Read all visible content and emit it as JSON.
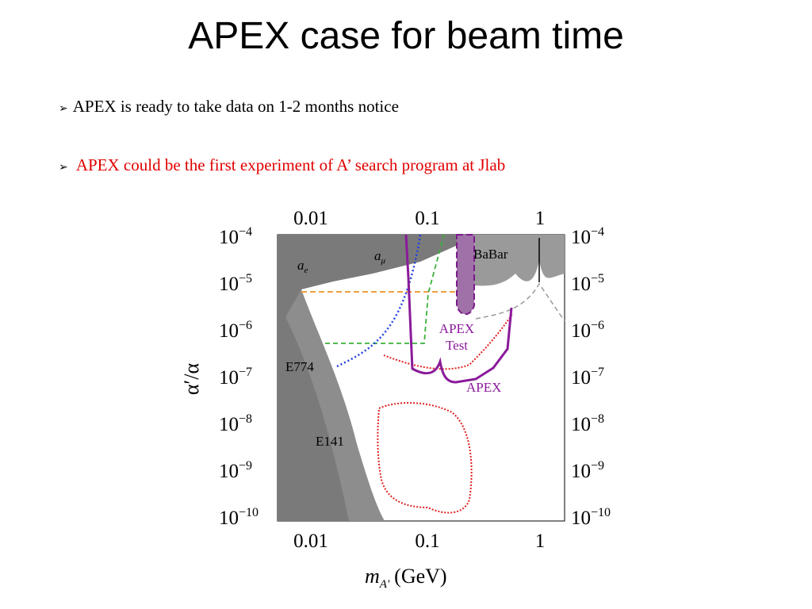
{
  "title": "APEX case for beam time",
  "bullets": [
    "APEX is ready to take data on 1-2 months notice",
    "APEX could be the first experiment of A’ search program at Jlab"
  ],
  "figure": {
    "x_label": {
      "base": "m",
      "sub": "A'",
      "unit": "(GeV)"
    },
    "y_label": "α′/α",
    "x_ticks": [
      "0.01",
      "0.1",
      "1"
    ],
    "y_ticks": [
      {
        "base": "10",
        "exp": "−4"
      },
      {
        "base": "10",
        "exp": "−5"
      },
      {
        "base": "10",
        "exp": "−6"
      },
      {
        "base": "10",
        "exp": "−7"
      },
      {
        "base": "10",
        "exp": "−8"
      },
      {
        "base": "10",
        "exp": "−9"
      },
      {
        "base": "10",
        "exp": "−10"
      }
    ],
    "annotations": {
      "ae": "a",
      "ae_sub": "e",
      "amu": "a",
      "amu_sub": "μ",
      "babar": "BaBar",
      "apex_test_1": "APEX",
      "apex_test_2": "Test",
      "apex": "APEX",
      "e774": "E774",
      "e141": "E141"
    }
  }
}
